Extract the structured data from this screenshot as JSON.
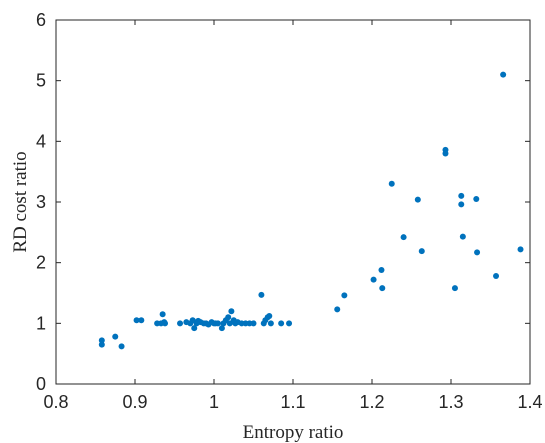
{
  "chart_data": {
    "type": "scatter",
    "title": "",
    "xlabel": "Entropy ratio",
    "ylabel": "RD cost ratio",
    "xlim": [
      0.8,
      1.4
    ],
    "ylim": [
      0,
      6
    ],
    "xticks": [
      "0.8",
      "0.9",
      "1",
      "1.1",
      "1.2",
      "1.3",
      "1.4"
    ],
    "yticks": [
      "0",
      "1",
      "2",
      "3",
      "4",
      "5",
      "6"
    ],
    "grid": false,
    "box": true,
    "marker_color": "#0072BD",
    "series": [
      {
        "x": [
          0.858,
          0.858,
          0.875,
          0.883,
          0.902,
          0.908,
          0.928,
          0.933,
          0.935,
          0.937,
          0.938,
          0.957,
          0.965,
          0.97,
          0.973,
          0.975,
          0.978,
          0.98,
          0.983,
          0.987,
          0.99,
          0.993,
          0.997,
          1.0,
          1.002,
          1.005,
          1.01,
          1.012,
          1.015,
          1.018,
          1.02,
          1.022,
          1.025,
          1.027,
          1.03,
          1.035,
          1.04,
          1.045,
          1.05,
          1.06,
          1.063,
          1.065,
          1.068,
          1.07,
          1.072,
          1.085,
          1.095,
          1.156,
          1.165,
          1.202,
          1.212,
          1.213,
          1.225,
          1.24,
          1.258,
          1.263,
          1.293,
          1.293,
          1.305,
          1.313,
          1.313,
          1.315,
          1.332,
          1.333,
          1.357,
          1.366,
          1.388
        ],
        "y": [
          0.72,
          0.65,
          0.78,
          0.62,
          1.05,
          1.05,
          1.0,
          1.0,
          1.15,
          1.02,
          1.0,
          1.0,
          1.02,
          1.0,
          1.05,
          0.92,
          1.0,
          1.04,
          1.02,
          1.0,
          1.0,
          0.98,
          1.02,
          1.0,
          1.0,
          1.0,
          0.92,
          1.0,
          1.05,
          1.1,
          1.0,
          1.2,
          1.05,
          1.0,
          1.02,
          1.0,
          1.0,
          1.0,
          1.0,
          1.47,
          1.0,
          1.05,
          1.1,
          1.12,
          1.0,
          1.0,
          1.0,
          1.23,
          1.46,
          1.72,
          1.88,
          1.58,
          3.3,
          2.42,
          3.04,
          2.19,
          3.86,
          3.8,
          1.58,
          3.1,
          2.96,
          2.43,
          3.05,
          2.17,
          1.78,
          5.1,
          2.22
        ]
      }
    ]
  }
}
